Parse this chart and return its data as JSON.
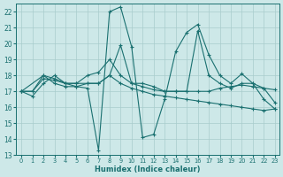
{
  "xlabel": "Humidex (Indice chaleur)",
  "bg_color": "#cde8e8",
  "line_color": "#1a7070",
  "grid_color": "#a8cccc",
  "xlim_min": -0.5,
  "xlim_max": 23.4,
  "ylim_min": 13,
  "ylim_max": 22.5,
  "xticks": [
    0,
    1,
    2,
    3,
    4,
    5,
    6,
    7,
    8,
    9,
    10,
    11,
    12,
    13,
    14,
    15,
    16,
    17,
    18,
    19,
    20,
    21,
    22,
    23
  ],
  "yticks": [
    13,
    14,
    15,
    16,
    17,
    18,
    19,
    20,
    21,
    22
  ],
  "series": [
    {
      "x": [
        0,
        1,
        2,
        3,
        4,
        5,
        6,
        7,
        8,
        9,
        10,
        11,
        12,
        13,
        14,
        15,
        16,
        17,
        18,
        19,
        20,
        21,
        22,
        23
      ],
      "y": [
        17.0,
        16.7,
        17.5,
        18.0,
        17.5,
        17.3,
        17.2,
        13.3,
        22.0,
        22.3,
        19.8,
        14.1,
        14.3,
        16.5,
        19.5,
        20.7,
        21.2,
        19.3,
        18.0,
        17.5,
        18.1,
        17.5,
        16.5,
        15.9
      ]
    },
    {
      "x": [
        0,
        1,
        2,
        3,
        4,
        5,
        6,
        7,
        8,
        9,
        10,
        11,
        12,
        13,
        14,
        15,
        16,
        17,
        18,
        19,
        20,
        21,
        22,
        23
      ],
      "y": [
        17.0,
        17.0,
        18.0,
        17.8,
        17.5,
        17.5,
        18.0,
        18.2,
        19.0,
        18.0,
        17.5,
        17.3,
        17.1,
        17.0,
        17.0,
        17.0,
        17.0,
        17.0,
        17.2,
        17.3,
        17.4,
        17.3,
        17.2,
        17.1
      ]
    },
    {
      "x": [
        0,
        2,
        3,
        4,
        5,
        6,
        7,
        8,
        9,
        10,
        11,
        12,
        13,
        14,
        15,
        16,
        17,
        18,
        19,
        20,
        21,
        22,
        23
      ],
      "y": [
        17.0,
        18.0,
        17.5,
        17.3,
        17.3,
        17.5,
        17.5,
        18.0,
        19.9,
        17.5,
        17.5,
        17.3,
        17.0,
        17.0,
        17.0,
        20.8,
        18.0,
        17.5,
        17.2,
        17.5,
        17.5,
        17.2,
        16.3
      ]
    },
    {
      "x": [
        0,
        1,
        2,
        3,
        4,
        5,
        6,
        7,
        8,
        9,
        10,
        11,
        12,
        13,
        14,
        15,
        16,
        17,
        18,
        19,
        20,
        21,
        22,
        23
      ],
      "y": [
        17.0,
        17.0,
        17.8,
        17.7,
        17.5,
        17.5,
        17.5,
        17.5,
        18.0,
        17.5,
        17.2,
        17.0,
        16.8,
        16.7,
        16.6,
        16.5,
        16.4,
        16.3,
        16.2,
        16.1,
        16.0,
        15.9,
        15.8,
        15.9
      ]
    }
  ]
}
